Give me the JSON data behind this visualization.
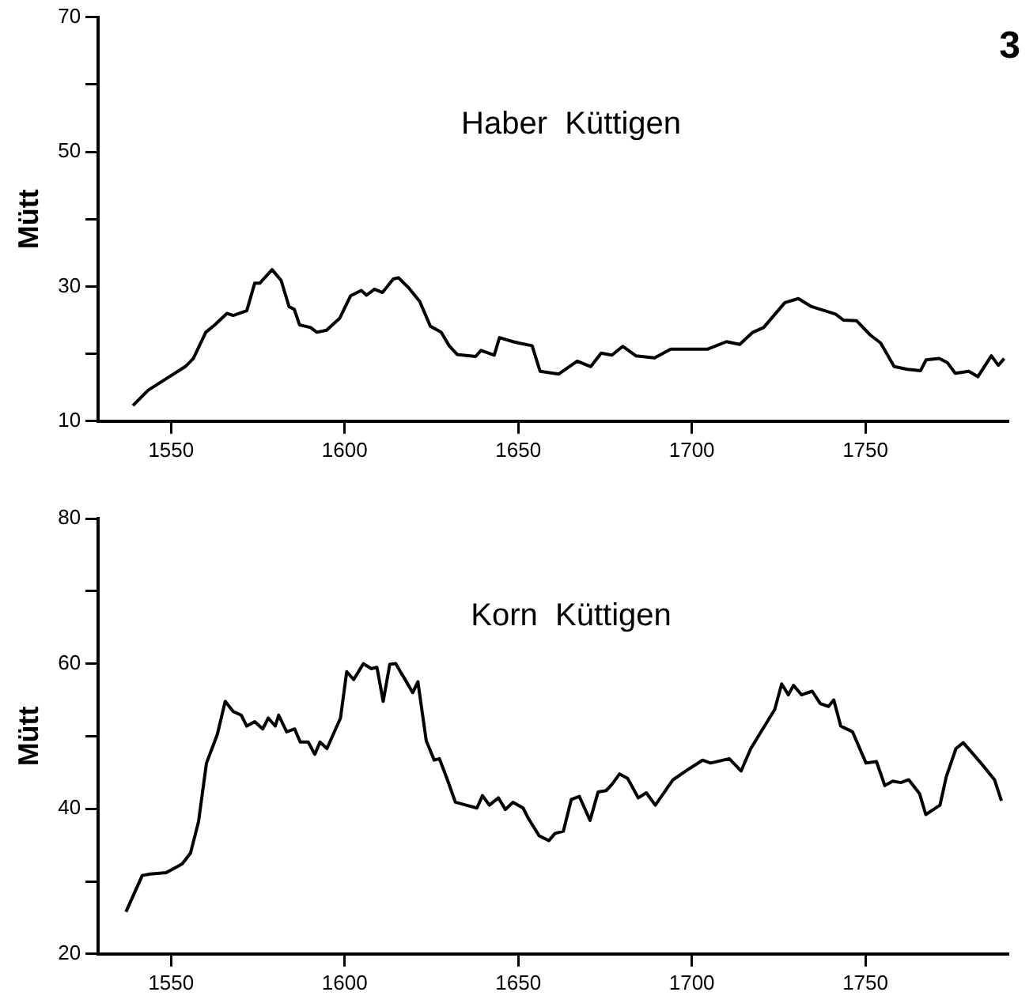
{
  "chart_data": [
    {
      "type": "line",
      "title": "Haber  Küttigen",
      "ylabel": "Mütt",
      "annotations": [
        "3"
      ],
      "xlim": [
        1529,
        1791
      ],
      "xticks": [
        1550,
        1600,
        1650,
        1700,
        1750
      ],
      "ylim": [
        10,
        70
      ],
      "yticks": [
        10,
        {
          "value": 20,
          "label": null
        },
        30,
        {
          "value": 40,
          "label": null
        },
        50,
        {
          "value": 60,
          "label": null
        },
        70
      ],
      "grid": false,
      "legend": false,
      "marker": "none",
      "line_style": "solid",
      "series": [
        {
          "color": "#000000",
          "x": [
            1539,
            1543.4,
            1549.5,
            1554.1,
            1556.4,
            1560,
            1562.6,
            1566.1,
            1567.9,
            1571.8,
            1574.1,
            1575.6,
            1579.1,
            1581.7,
            1584,
            1585.5,
            1587,
            1590.2,
            1592,
            1594.8,
            1598.6,
            1601.7,
            1604.8,
            1606.3,
            1608.6,
            1610.9,
            1614,
            1615.5,
            1618.6,
            1621.6,
            1624.7,
            1627.8,
            1630.1,
            1632.4,
            1637.7,
            1639.3,
            1643.1,
            1644.6,
            1648.5,
            1650.2,
            1654,
            1656.3,
            1661.7,
            1667,
            1670.9,
            1673.9,
            1677,
            1680.1,
            1683.9,
            1689.3,
            1693.9,
            1704.6,
            1710,
            1713.8,
            1717.6,
            1720.7,
            1726.8,
            1730.7,
            1734.5,
            1741.4,
            1743.7,
            1747.5,
            1751.4,
            1754.4,
            1758.3,
            1762.1,
            1765.9,
            1767.5,
            1771.3,
            1773.6,
            1775.9,
            1779.8,
            1782.4,
            1786.3,
            1788.3,
            1790
          ],
          "values": [
            12.3,
            14.6,
            16.6,
            18.1,
            19.3,
            23.2,
            24.3,
            26,
            25.7,
            26.4,
            30.5,
            30.5,
            32.5,
            30.9,
            27,
            26.6,
            24.3,
            23.9,
            23.2,
            23.5,
            25.3,
            28.6,
            29.4,
            28.7,
            29.6,
            29.1,
            31.1,
            31.3,
            29.7,
            27.8,
            24.1,
            23.2,
            21.2,
            19.9,
            19.6,
            20.5,
            19.8,
            22.4,
            21.8,
            21.6,
            21.2,
            17.4,
            17,
            18.9,
            18.1,
            20.1,
            19.8,
            21.1,
            19.7,
            19.4,
            20.7,
            20.7,
            21.8,
            21.4,
            23.2,
            23.9,
            27.6,
            28.2,
            27,
            25.9,
            25,
            24.9,
            22.8,
            21.6,
            18.1,
            17.7,
            17.5,
            19.1,
            19.3,
            18.7,
            17.1,
            17.4,
            16.6,
            19.7,
            18.3,
            19.3
          ]
        }
      ]
    },
    {
      "type": "line",
      "title": "Korn  Küttigen",
      "ylabel": "Mütt",
      "xlim": [
        1529,
        1791
      ],
      "xticks": [
        1550,
        1600,
        1650,
        1700,
        1750
      ],
      "ylim": [
        20,
        80
      ],
      "yticks": [
        20,
        {
          "value": 30,
          "label": null
        },
        40,
        {
          "value": 50,
          "label": null
        },
        60,
        {
          "value": 70,
          "label": null
        },
        80
      ],
      "grid": false,
      "legend": false,
      "marker": "none",
      "line_style": "solid",
      "series": [
        {
          "color": "#000000",
          "x": [
            1537,
            1541.7,
            1544,
            1548.6,
            1553.2,
            1555.6,
            1557.9,
            1560.2,
            1563.3,
            1565.6,
            1567.9,
            1570.2,
            1571.8,
            1574.1,
            1576.4,
            1578,
            1580,
            1581,
            1583.3,
            1585.6,
            1587.2,
            1589.5,
            1591.4,
            1592.9,
            1594.9,
            1598.8,
            1600.6,
            1602.6,
            1605.4,
            1607.7,
            1609.3,
            1611.1,
            1613,
            1614.7,
            1617.3,
            1619.6,
            1621.1,
            1623.5,
            1625.8,
            1627.3,
            1629.6,
            1631.9,
            1635,
            1638.1,
            1639.7,
            1641.7,
            1644.3,
            1646.3,
            1648.5,
            1651.4,
            1653,
            1656,
            1658.8,
            1660.6,
            1663,
            1665.3,
            1667.6,
            1670.7,
            1673,
            1675.3,
            1676.9,
            1679.2,
            1681.5,
            1684.6,
            1686.9,
            1689.5,
            1694.6,
            1699.2,
            1703.1,
            1705.4,
            1710.8,
            1714.2,
            1717,
            1723.9,
            1725.9,
            1727.8,
            1729.3,
            1731.6,
            1734.7,
            1737,
            1739.4,
            1740.9,
            1742.9,
            1746.3,
            1750.2,
            1753.2,
            1755.6,
            1757.9,
            1760.2,
            1762.5,
            1765.6,
            1767.4,
            1771.5,
            1773.3,
            1776.1,
            1778.2,
            1783.3,
            1787.2,
            1789.2
          ],
          "values": [
            25.8,
            30.8,
            31,
            31.2,
            32.4,
            33.9,
            38.2,
            46.3,
            50.2,
            54.8,
            53.4,
            52.9,
            51.4,
            52,
            51,
            52.5,
            51.4,
            52.9,
            50.6,
            51,
            49.2,
            49.2,
            47.5,
            49.2,
            48.3,
            52.5,
            58.9,
            57.8,
            60,
            59.3,
            59.5,
            54.8,
            59.9,
            60,
            57.9,
            56,
            57.5,
            49.4,
            46.7,
            46.9,
            44,
            40.9,
            40.5,
            40.1,
            41.8,
            40.5,
            41.5,
            39.9,
            40.9,
            40.1,
            38.6,
            36.3,
            35.6,
            36.6,
            36.9,
            41.3,
            41.7,
            38.4,
            42.3,
            42.5,
            43.3,
            44.8,
            44.2,
            41.5,
            42.2,
            40.5,
            44,
            45.5,
            46.7,
            46.3,
            46.9,
            45.2,
            48.3,
            53.7,
            57.2,
            55.7,
            57,
            55.7,
            56.2,
            54.5,
            54.1,
            55,
            51.4,
            50.6,
            46.3,
            46.5,
            43.2,
            43.8,
            43.6,
            44,
            42.1,
            39.2,
            40.5,
            44.4,
            48.3,
            49.1,
            46.3,
            44,
            41.1
          ]
        }
      ]
    }
  ]
}
